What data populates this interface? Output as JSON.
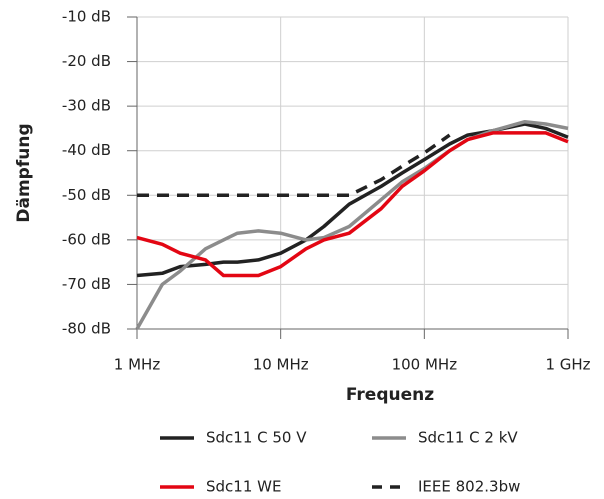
{
  "chart_data": {
    "type": "line",
    "xlabel": "Frequenz",
    "ylabel": "Dämpfung",
    "x": [
      1,
      1.5,
      2,
      3,
      4,
      5,
      7,
      10,
      15,
      20,
      30,
      50,
      70,
      100,
      150,
      200,
      300,
      500,
      700,
      1000
    ],
    "xlim": [
      1,
      1000
    ],
    "xscale": "log",
    "xticks": [
      {
        "value": 1,
        "label": "1 MHz"
      },
      {
        "value": 10,
        "label": "10 MHz"
      },
      {
        "value": 100,
        "label": "100 MHz"
      },
      {
        "value": 1000,
        "label": "1 GHz"
      }
    ],
    "ylim": [
      -80,
      -10
    ],
    "yticks": [
      {
        "value": -80,
        "label": "-80 dB"
      },
      {
        "value": -70,
        "label": "-70 dB"
      },
      {
        "value": -60,
        "label": "-60 dB"
      },
      {
        "value": -50,
        "label": "-50 dB"
      },
      {
        "value": -40,
        "label": "-40 dB"
      },
      {
        "value": -30,
        "label": "-30 dB"
      },
      {
        "value": -20,
        "label": "-20 dB"
      },
      {
        "value": -10,
        "label": "-10 dB"
      }
    ],
    "grid": true,
    "legend": "bottom",
    "series": [
      {
        "name": "Sdc11 C 50 V",
        "color": "#222222",
        "values": [
          -68,
          -67.5,
          -66,
          -65.5,
          -65,
          -65,
          -64.5,
          -63,
          -60,
          -57,
          -52,
          -48,
          -45,
          -42,
          -38.5,
          -36.5,
          -35.5,
          -34,
          -35,
          -37
        ]
      },
      {
        "name": "Sdc11 C 2 kV",
        "color": "#8c8c8c",
        "values": [
          -80,
          -70,
          -67,
          -62,
          -60,
          -58.5,
          -58,
          -58.5,
          -60,
          -59.5,
          -57,
          -51,
          -47,
          -44,
          -40,
          -37.5,
          -35.5,
          -33.5,
          -34,
          -35
        ]
      },
      {
        "name": "Sdc11 WE",
        "color": "#e30613",
        "values": [
          -59.5,
          -61,
          -63,
          -64.5,
          -68,
          -68,
          -68,
          -66,
          -62,
          -60,
          -58.5,
          -53,
          -48,
          -44.5,
          -40,
          -37.5,
          -36,
          -36,
          -36,
          -38
        ]
      },
      {
        "name": "IEEE 802.3bw",
        "color": "#222222",
        "dashed": true,
        "values": [
          -50,
          -50,
          -50,
          -50,
          -50,
          -50,
          -50,
          -50,
          -50,
          -50,
          -50,
          -46.5,
          -43.5,
          -40.5,
          -36.5,
          null,
          null,
          null,
          null,
          null
        ]
      }
    ]
  }
}
